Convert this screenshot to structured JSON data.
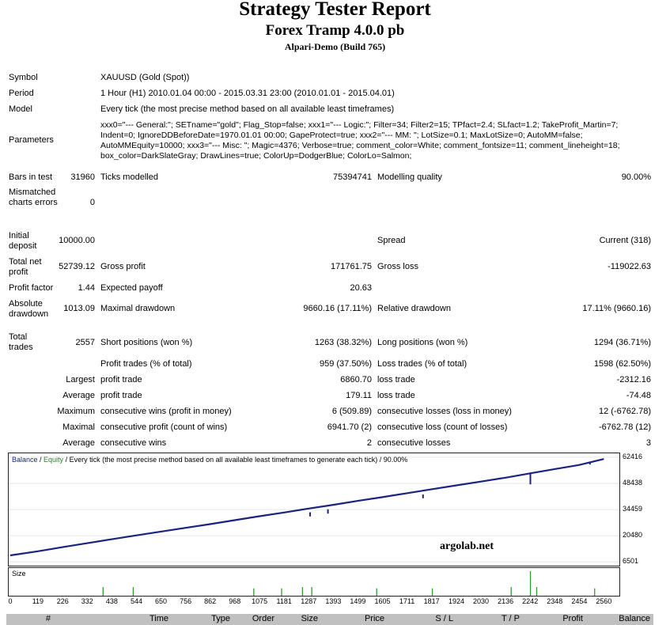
{
  "report": {
    "title": "Strategy Tester Report",
    "ea_name": "Forex Tramp 4.0.0 pb",
    "server": "Alpari-Demo (Build 765)"
  },
  "info": {
    "symbol_label": "Symbol",
    "symbol": "XAUUSD (Gold (Spot))",
    "period_label": "Period",
    "period": "1 Hour (H1) 2010.01.04 00:00 - 2015.03.31 23:00 (2010.01.01 - 2015.04.01)",
    "model_label": "Model",
    "model": "Every tick (the most precise method based on all available least timeframes)",
    "parameters_label": "Parameters",
    "parameters": "xxx0=\"--- General:\"; SETname=\"gold\"; Flag_Stop=false; xxx1=\"--- Logic:\"; Filter=34; Filter2=15; TPfact=2.4; SLfact=1.2; TakeProfit_Martin=7; Indent=0; IgnoreDDBeforeDate=1970.01.01 00:00; GapeProtect=true; xxx2=\"--- MM: \"; LotSize=0.1; MaxLotSize=0; AutoMM=false; AutoMMEquity=10000; xxx3=\"--- Misc: \"; Magic=4376; Verbose=true; comment_color=White; comment_fontsize=11; comment_lineheight=18; box_color=DarkSlateGray; DrawLines=true; ColorUp=DodgerBlue; ColorLo=Salmon;"
  },
  "stats": {
    "bars_label": "Bars in test",
    "bars": "31960",
    "ticks_label": "Ticks modelled",
    "ticks": "75394741",
    "quality_label": "Modelling quality",
    "quality": "90.00%",
    "mismatch_label": "Mismatched charts errors",
    "mismatch": "0",
    "deposit_label": "Initial deposit",
    "deposit": "10000.00",
    "spread_label": "Spread",
    "spread": "Current (318)",
    "netprofit_label": "Total net profit",
    "netprofit": "52739.12",
    "grossprofit_label": "Gross profit",
    "grossprofit": "171761.75",
    "grossloss_label": "Gross loss",
    "grossloss": "-119022.63",
    "pf_label": "Profit factor",
    "pf": "1.44",
    "payoff_label": "Expected payoff",
    "payoff": "20.63",
    "absdd_label": "Absolute drawdown",
    "absdd": "1013.09",
    "maxdd_label": "Maximal drawdown",
    "maxdd": "9660.16 (17.11%)",
    "reldd_label": "Relative drawdown",
    "reldd": "17.11% (9660.16)",
    "trades_label": "Total trades",
    "trades": "2557",
    "short_label": "Short positions (won %)",
    "short": "1263 (38.32%)",
    "long_label": "Long positions (won %)",
    "long": "1294 (36.71%)",
    "ptrades_label": "Profit trades (% of total)",
    "ptrades": "959 (37.50%)",
    "ltrades_label": "Loss trades (% of total)",
    "ltrades": "1598 (62.50%)",
    "largest_label": "Largest",
    "lprofit_label": "profit trade",
    "lprofit": "6860.70",
    "lloss_label": "loss trade",
    "lloss": "-2312.16",
    "average_label": "Average",
    "aprofit_label": "profit trade",
    "aprofit": "179.11",
    "aloss_label": "loss trade",
    "aloss": "-74.48",
    "maximum_label": "Maximum",
    "mcwins_label": "consecutive wins (profit in money)",
    "mcwins": "6 (509.89)",
    "mclosses_label": "consecutive losses (loss in money)",
    "mclosses": "12 (-6762.78)",
    "maximal_label": "Maximal",
    "mcprofit_label": "consecutive profit (count of wins)",
    "mcprofit": "6941.70 (2)",
    "mcloss_label": "consecutive loss (count of losses)",
    "mcloss": "-6762.78 (12)",
    "average2_label": "Average",
    "acwins_label": "consecutive wins",
    "acwins": "2",
    "aclosses_label": "consecutive losses",
    "aclosses": "3"
  },
  "chart_legend": {
    "balance": "Balance",
    "sep1": " / ",
    "equity": "Equity",
    "rest": " / Every tick (the most precise method based on all available least timeframes to generate each tick) / 90.00%",
    "size": "Size",
    "watermark": "argolab.net"
  },
  "colors": {
    "balance": "#1a237e",
    "equity": "#2e7d32",
    "size": "#2e9e2e"
  },
  "chart_data": {
    "type": "line",
    "title": "",
    "series": [
      {
        "name": "Balance",
        "values": "see x/y"
      }
    ],
    "x": [
      0,
      119,
      226,
      332,
      438,
      544,
      650,
      756,
      862,
      968,
      1075,
      1181,
      1287,
      1393,
      1499,
      1605,
      1711,
      1817,
      1924,
      2030,
      2136,
      2242,
      2348,
      2454,
      2560
    ],
    "y": [
      10000,
      12200,
      14400,
      16500,
      18600,
      20700,
      22700,
      24700,
      26700,
      28800,
      30900,
      32900,
      35000,
      37000,
      39100,
      41100,
      43200,
      45300,
      47400,
      49400,
      51500,
      53800,
      56100,
      58300,
      61500
    ],
    "yticks": [
      6501,
      20480,
      34459,
      48438,
      62416
    ],
    "xticks": [
      0,
      119,
      226,
      332,
      438,
      544,
      650,
      756,
      862,
      968,
      1075,
      1181,
      1287,
      1393,
      1499,
      1605,
      1711,
      1817,
      1924,
      2030,
      2136,
      2242,
      2348,
      2454,
      2560
    ],
    "ylim": [
      4500,
      64500
    ],
    "xlim": [
      0,
      2620
    ],
    "drawdown_spikes": [
      {
        "x": 1293,
        "y": 33000,
        "low": 30800
      },
      {
        "x": 1370,
        "y": 34600,
        "low": 32300
      },
      {
        "x": 1780,
        "y": 42500,
        "low": 40500
      },
      {
        "x": 2243,
        "y": 53700,
        "low": 47900
      },
      {
        "x": 2500,
        "y": 60000,
        "low": 58500
      }
    ],
    "size_bars": [
      {
        "x": 400,
        "v": 0.35
      },
      {
        "x": 530,
        "v": 0.35
      },
      {
        "x": 1050,
        "v": 0.3
      },
      {
        "x": 1170,
        "v": 0.3
      },
      {
        "x": 1260,
        "v": 0.35
      },
      {
        "x": 1300,
        "v": 0.35
      },
      {
        "x": 1580,
        "v": 0.3
      },
      {
        "x": 1820,
        "v": 0.3
      },
      {
        "x": 2160,
        "v": 0.35
      },
      {
        "x": 2243,
        "v": 1.0
      },
      {
        "x": 2270,
        "v": 0.35
      },
      {
        "x": 2520,
        "v": 0.3
      }
    ]
  },
  "table_header": [
    "#",
    "Time",
    "Type",
    "Order",
    "Size",
    "Price",
    "S / L",
    "T / P",
    "Profit",
    "Balance"
  ]
}
